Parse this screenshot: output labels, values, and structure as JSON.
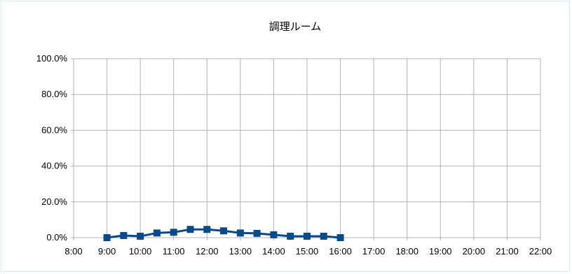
{
  "chart_data": {
    "type": "line",
    "title": "調理ルーム",
    "xlabel": "",
    "ylabel": "",
    "x_ticks": [
      "8:00",
      "9:00",
      "10:00",
      "11:00",
      "12:00",
      "13:00",
      "14:00",
      "15:00",
      "16:00",
      "17:00",
      "18:00",
      "19:00",
      "20:00",
      "21:00",
      "22:00"
    ],
    "y_ticks": [
      "0.0%",
      "20.0%",
      "40.0%",
      "60.0%",
      "80.0%",
      "100.0%"
    ],
    "xlim": [
      "8:00",
      "22:00"
    ],
    "ylim": [
      0,
      100
    ],
    "grid": true,
    "legend": "none",
    "series": [
      {
        "x": [
          "9:00",
          "9:30",
          "10:00",
          "10:30",
          "11:00",
          "11:30",
          "12:00",
          "12:30",
          "13:00",
          "13:30",
          "14:00",
          "14:30",
          "15:00",
          "15:30",
          "16:00"
        ],
        "values": [
          0.0,
          1.2,
          0.8,
          2.6,
          3.0,
          4.6,
          4.6,
          3.8,
          2.6,
          2.4,
          1.6,
          0.8,
          0.8,
          0.8,
          0.0
        ],
        "color": "#0b4a87",
        "marker": "square"
      }
    ]
  }
}
